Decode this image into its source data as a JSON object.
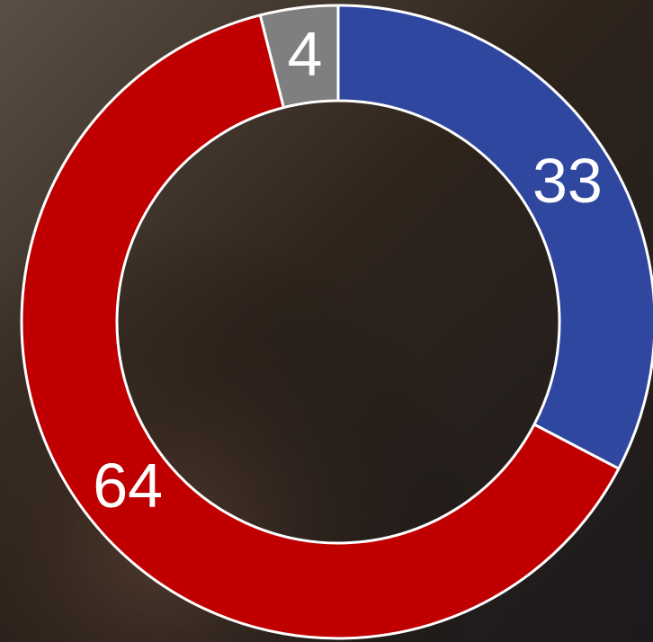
{
  "chart_data": {
    "type": "donut",
    "values": [
      33,
      64,
      4
    ],
    "colors": [
      "#2f479e",
      "#c00000",
      "#7f7f7f"
    ]
  }
}
